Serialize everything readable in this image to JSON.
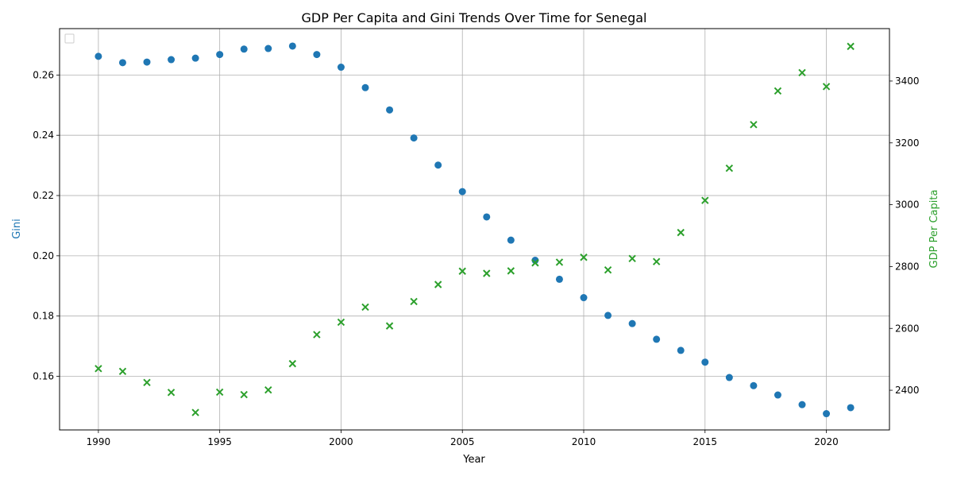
{
  "chart_data": {
    "type": "scatter",
    "title": "GDP Per Capita and Gini Trends Over Time for Senegal",
    "xlabel": "Year",
    "ylabel_left": "Gini",
    "ylabel_right": "GDP Per Capita",
    "xlim": [
      1988.4,
      2022.6
    ],
    "ylim_left": [
      0.1422,
      0.2754
    ],
    "ylim_right": [
      2271.7,
      3569.5
    ],
    "x_ticks": [
      "1990",
      "1995",
      "2000",
      "2005",
      "2010",
      "2015",
      "2020"
    ],
    "y_left_ticks": [
      "0.16",
      "0.18",
      "0.20",
      "0.22",
      "0.24",
      "0.26"
    ],
    "y_right_ticks": [
      "2400",
      "2600",
      "2800",
      "3000",
      "3200",
      "3400"
    ],
    "grid": true,
    "legend_position": "top-left",
    "legend_entries": [],
    "colors": {
      "gini": "#1f77b4",
      "gdp": "#2ca02c",
      "grid": "#b0b0b0",
      "axis": "#000000"
    },
    "x": [
      1990,
      1991,
      1992,
      1993,
      1994,
      1995,
      1996,
      1997,
      1998,
      1999,
      2000,
      2001,
      2002,
      2003,
      2004,
      2005,
      2006,
      2007,
      2008,
      2009,
      2010,
      2011,
      2012,
      2013,
      2014,
      2015,
      2016,
      2017,
      2018,
      2019,
      2020,
      2021
    ],
    "series": [
      {
        "axis": "left",
        "marker": "circle",
        "values": [
          0.2662,
          0.2641,
          0.2643,
          0.2651,
          0.2656,
          0.2668,
          0.2686,
          0.2688,
          0.2696,
          0.2668,
          0.2626,
          0.2558,
          0.2484,
          0.2391,
          0.2301,
          0.2213,
          0.2129,
          0.2052,
          0.1985,
          0.1922,
          0.1861,
          0.1802,
          0.1775,
          0.1723,
          0.1686,
          0.1647,
          0.1596,
          0.1569,
          0.1538,
          0.1506,
          0.1476,
          0.1496
        ]
      },
      {
        "axis": "right",
        "marker": "x",
        "values": [
          2470,
          2461,
          2425,
          2393,
          2328,
          2394,
          2386,
          2401,
          2486,
          2580,
          2620,
          2669,
          2608,
          2687,
          2742,
          2785,
          2778,
          2786,
          2812,
          2814,
          2830,
          2789,
          2826,
          2816,
          2910,
          3014,
          3118,
          3259,
          3368,
          3427,
          3382,
          3512
        ]
      }
    ]
  }
}
